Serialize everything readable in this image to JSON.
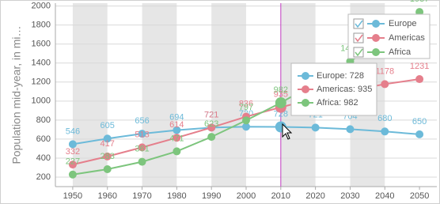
{
  "chart_data": {
    "type": "line",
    "y_axis_label": "Population mid-year, in mi…",
    "x": [
      1950,
      1960,
      1970,
      1980,
      1990,
      2000,
      2010,
      2020,
      2030,
      2040,
      2050
    ],
    "series": [
      {
        "name": "Europe",
        "color": "#6cbad9",
        "values": [
          546,
          605,
          656,
          694,
          721,
          730,
          728,
          721,
          704,
          680,
          650
        ]
      },
      {
        "name": "Americas",
        "color": "#e57f8c",
        "values": [
          332,
          417,
          513,
          614,
          721,
          836,
          935,
          1027,
          1110,
          1178,
          1231
        ]
      },
      {
        "name": "Africa",
        "color": "#7dc57d",
        "values": [
          227,
          283,
          361,
          471,
          623,
          797,
          982,
          1189,
          1416,
          1665,
          1937
        ]
      }
    ],
    "xlim": [
      1945,
      2055
    ],
    "xticks": [
      1950,
      1960,
      1970,
      1980,
      1990,
      2000,
      2010,
      2020,
      2030,
      2040,
      2050
    ],
    "ylim": [
      100,
      2030
    ],
    "yticks": [
      200,
      400,
      600,
      800,
      1000,
      1200,
      1400,
      1600,
      1800,
      2000
    ],
    "grid": true,
    "legend": "top-right",
    "tooltip": [
      "Europe: 728",
      "Americas: 935",
      "Africa: 982"
    ]
  }
}
